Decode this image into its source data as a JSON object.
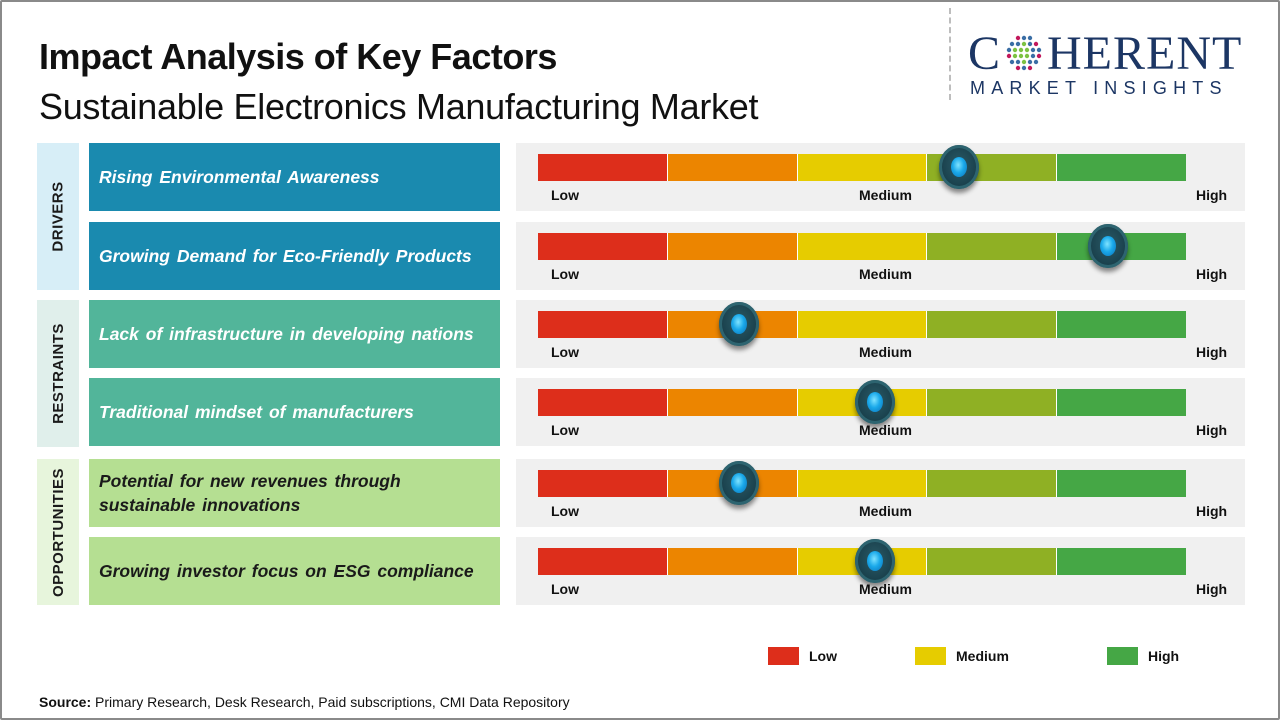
{
  "header": {
    "title": "Impact Analysis of Key Factors",
    "subtitle": "Sustainable Electronics Manufacturing Market"
  },
  "logo": {
    "brand_prefix": "C",
    "brand_suffix": "HERENT",
    "tagline": "MARKET INSIGHTS",
    "icon": "globe-dots-icon"
  },
  "colors": {
    "segments": [
      "#dd2e1b",
      "#ec8500",
      "#e6cc00",
      "#8fb024",
      "#45a745"
    ],
    "drivers_bg": "#1a8aaf",
    "drivers_cat_bg": "#d7eef7",
    "restraints_bg": "#52b59a",
    "restraints_cat_bg": "#e0efeb",
    "opportunities_bg": "#b5df92",
    "opportunities_cat_bg": "#e7f5dc",
    "knob": "#1c4450",
    "knob_light": "#1aa9ea"
  },
  "scale_labels": {
    "low": "Low",
    "medium": "Medium",
    "high": "High"
  },
  "categories": [
    {
      "name": "DRIVERS",
      "key": "drivers"
    },
    {
      "name": "RESTRAINTS",
      "key": "restraints"
    },
    {
      "name": "OPPORTUNITIES",
      "key": "opportunities"
    }
  ],
  "chart_data": {
    "type": "table",
    "title": "Impact Analysis of Key Factors",
    "subtitle": "Sustainable Electronics Manufacturing Market",
    "scale": {
      "min_label": "Low",
      "mid_label": "Medium",
      "max_label": "High",
      "range": [
        0,
        1
      ],
      "segments": 5
    },
    "rows": [
      {
        "category": "DRIVERS",
        "factor": "Rising Environmental  Awareness",
        "impact": 0.65,
        "impact_level": "Medium-High"
      },
      {
        "category": "DRIVERS",
        "factor": "Growing  Demand  for Eco-Friendly  Products",
        "impact": 0.88,
        "impact_level": "High"
      },
      {
        "category": "RESTRAINTS",
        "factor": "Lack of infrastructure  in developing  nations",
        "impact": 0.31,
        "impact_level": "Low-Medium"
      },
      {
        "category": "RESTRAINTS",
        "factor": "Traditional  mindset of manufacturers",
        "impact": 0.52,
        "impact_level": "Medium"
      },
      {
        "category": "OPPORTUNITIES",
        "factor": "Potential  for new  revenues  through sustainable  innovations",
        "impact": 0.31,
        "impact_level": "Low-Medium"
      },
      {
        "category": "OPPORTUNITIES",
        "factor": "Growing  investor  focus on ESG compliance",
        "impact": 0.52,
        "impact_level": "Medium"
      }
    ],
    "legend": [
      {
        "label": "Low",
        "color": "#dd2e1b"
      },
      {
        "label": "Medium",
        "color": "#e6cc00"
      },
      {
        "label": "High",
        "color": "#45a745"
      }
    ],
    "legend_position": "bottom-right"
  },
  "source": {
    "label": "Source:",
    "text": " Primary Research, Desk Research, Paid subscriptions, CMI Data Repository"
  }
}
